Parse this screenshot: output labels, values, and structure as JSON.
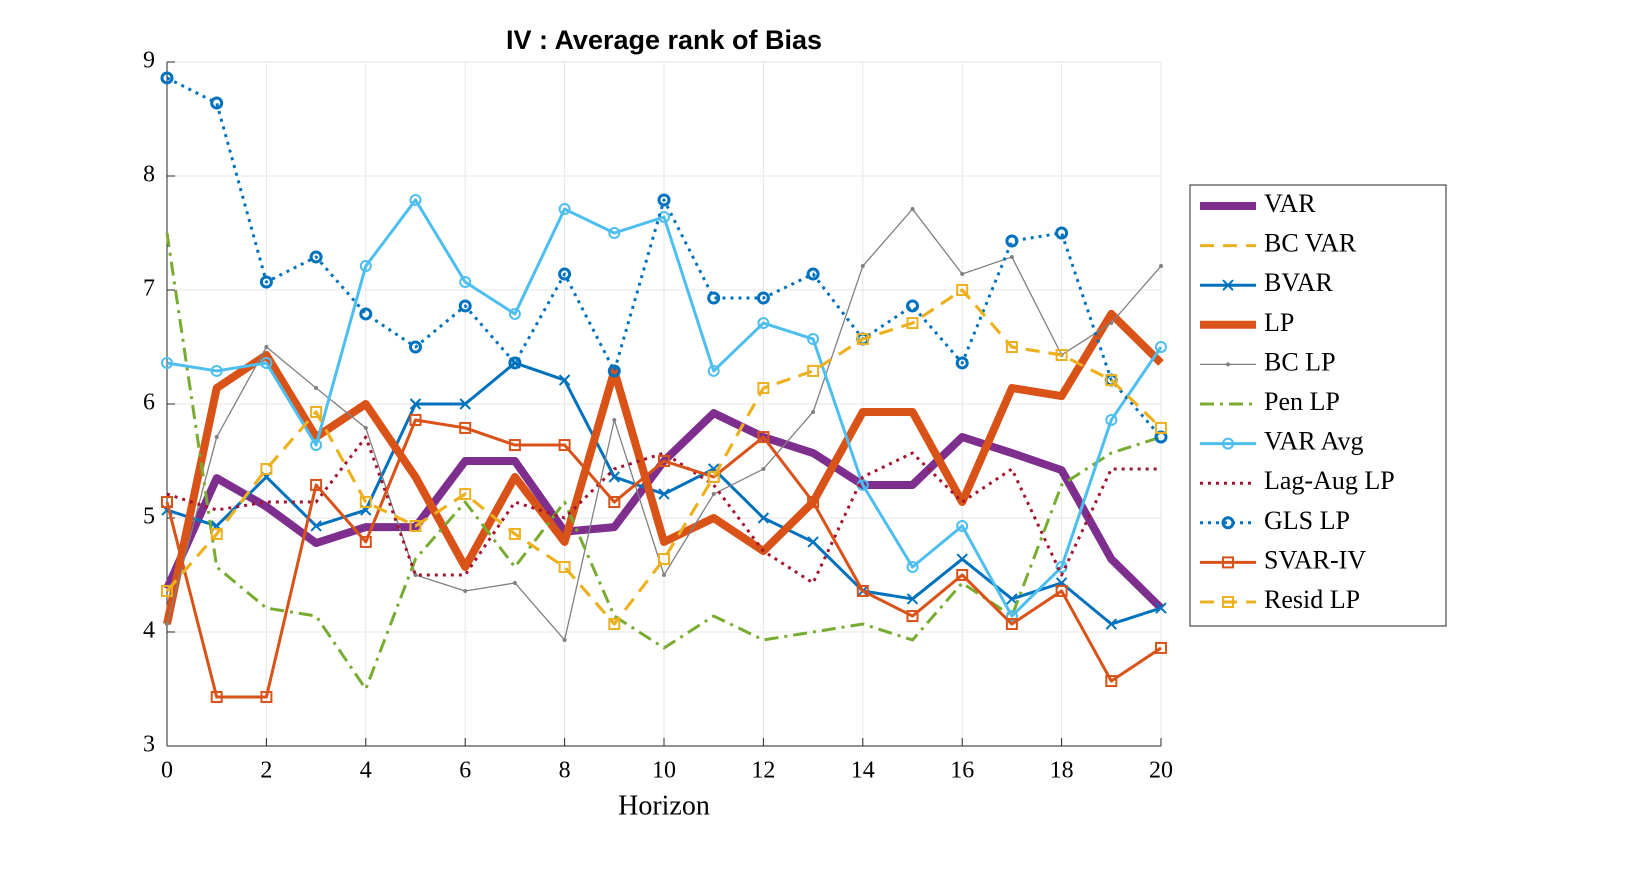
{
  "chart_data": {
    "type": "line",
    "title": "IV : Average rank of Bias",
    "xlabel": "Horizon",
    "x": [
      0,
      1,
      2,
      3,
      4,
      5,
      6,
      7,
      8,
      9,
      10,
      11,
      12,
      13,
      14,
      15,
      16,
      17,
      18,
      19,
      20
    ],
    "xlim": [
      0,
      20
    ],
    "xticks": [
      0,
      2,
      4,
      6,
      8,
      10,
      12,
      14,
      16,
      18,
      20
    ],
    "ylim": [
      3,
      9
    ],
    "yticks": [
      3,
      4,
      5,
      6,
      7,
      8,
      9
    ],
    "grid": true,
    "legend": "outside right",
    "series": [
      {
        "name": "VAR",
        "color": "#7e2f8e",
        "style": "solid",
        "weight": "heavy",
        "marker": "none",
        "values": [
          4.38,
          5.35,
          5.1,
          4.78,
          4.92,
          4.92,
          5.5,
          5.5,
          4.88,
          4.92,
          5.5,
          5.92,
          5.71,
          5.57,
          5.29,
          5.29,
          5.71,
          5.57,
          5.42,
          4.64,
          4.21
        ]
      },
      {
        "name": "BC VAR",
        "color": "#edb120",
        "style": "dashed",
        "weight": "normal",
        "marker": "none",
        "values": [
          4.36,
          4.86,
          5.43,
          5.93,
          5.14,
          4.93,
          5.21,
          4.86,
          4.57,
          4.07,
          4.64,
          5.36,
          6.14,
          6.29,
          6.57,
          6.71,
          7.0,
          6.5,
          6.43,
          6.21,
          5.79
        ]
      },
      {
        "name": "BVAR",
        "color": "#0072bd",
        "style": "solid",
        "weight": "normal",
        "marker": "x",
        "values": [
          5.07,
          4.93,
          5.36,
          4.93,
          5.07,
          6.0,
          6.0,
          6.36,
          6.21,
          5.36,
          5.21,
          5.43,
          5.0,
          4.79,
          4.36,
          4.29,
          4.64,
          4.29,
          4.43,
          4.07,
          4.21
        ]
      },
      {
        "name": "LP",
        "color": "#d95319",
        "style": "solid",
        "weight": "heavy",
        "marker": "none",
        "values": [
          4.07,
          6.14,
          6.43,
          5.71,
          6.0,
          5.36,
          4.57,
          5.36,
          4.79,
          6.29,
          4.79,
          5.0,
          4.71,
          5.14,
          5.93,
          5.93,
          5.14,
          6.14,
          6.07,
          6.79,
          6.36
        ]
      },
      {
        "name": "BC LP",
        "color": "#808080",
        "style": "solid",
        "weight": "light",
        "marker": "dot",
        "values": [
          4.07,
          5.71,
          6.5,
          6.14,
          5.79,
          4.5,
          4.36,
          4.43,
          3.93,
          5.86,
          4.5,
          5.21,
          5.43,
          5.93,
          7.21,
          7.71,
          7.14,
          7.29,
          6.43,
          6.71,
          7.21
        ]
      },
      {
        "name": "Pen LP",
        "color": "#77ac30",
        "style": "dashdot",
        "weight": "normal",
        "marker": "none",
        "values": [
          7.5,
          4.57,
          4.21,
          4.14,
          3.5,
          4.64,
          5.14,
          4.57,
          5.14,
          4.14,
          3.86,
          4.14,
          3.93,
          4.0,
          4.07,
          3.93,
          4.43,
          4.14,
          5.29,
          5.57,
          5.71
        ]
      },
      {
        "name": "VAR Avg",
        "color": "#4dbeee",
        "style": "solid",
        "weight": "normal",
        "marker": "circle",
        "values": [
          6.36,
          6.29,
          6.36,
          5.64,
          7.21,
          7.79,
          7.07,
          6.79,
          7.71,
          7.5,
          7.64,
          6.29,
          6.71,
          6.57,
          5.29,
          4.57,
          4.93,
          4.14,
          4.57,
          5.86,
          6.5
        ]
      },
      {
        "name": "Lag-Aug LP",
        "color": "#a2142f",
        "style": "dotted",
        "weight": "normal",
        "marker": "none",
        "values": [
          5.21,
          5.07,
          5.14,
          5.14,
          5.71,
          4.5,
          4.5,
          5.14,
          5.0,
          5.43,
          5.57,
          5.29,
          4.71,
          4.43,
          5.36,
          5.57,
          5.14,
          5.43,
          4.5,
          5.43,
          5.43
        ]
      },
      {
        "name": "GLS LP",
        "color": "#0072bd",
        "style": "dotted",
        "weight": "normal",
        "marker": "ring",
        "values": [
          8.86,
          8.64,
          7.07,
          7.29,
          6.79,
          6.5,
          6.86,
          6.36,
          7.14,
          6.29,
          7.79,
          6.93,
          6.93,
          7.14,
          6.57,
          6.86,
          6.36,
          7.43,
          7.5,
          6.21,
          5.71
        ]
      },
      {
        "name": "SVAR-IV",
        "color": "#d95319",
        "style": "solid",
        "weight": "normal",
        "marker": "square",
        "values": [
          5.14,
          3.43,
          3.43,
          5.29,
          4.79,
          5.86,
          5.79,
          5.64,
          5.64,
          5.14,
          5.5,
          5.36,
          5.71,
          5.14,
          4.36,
          4.14,
          4.5,
          4.07,
          4.36,
          3.57,
          3.86
        ]
      },
      {
        "name": "Resid LP",
        "color": "#edb120",
        "style": "dashed",
        "weight": "normal",
        "marker": "square",
        "values": [
          4.36,
          4.86,
          5.43,
          5.93,
          5.14,
          4.93,
          5.21,
          4.86,
          4.57,
          4.07,
          4.64,
          5.36,
          6.14,
          6.29,
          6.57,
          6.71,
          7.0,
          6.5,
          6.43,
          6.21,
          5.79
        ]
      }
    ]
  }
}
